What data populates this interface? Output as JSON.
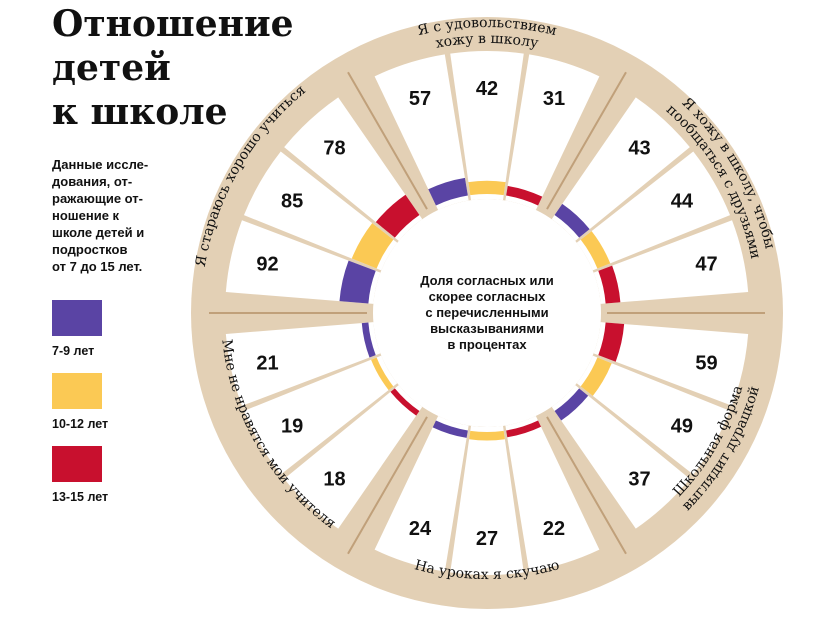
{
  "title_lines": [
    "Отношение",
    "детей",
    "к школе"
  ],
  "subtitle_lines": [
    "Данные иссле-",
    "дования, от-",
    "ражающие от-",
    "ношение к",
    "школе детей и",
    "подростков",
    "от 7 до 15 лет."
  ],
  "colors": {
    "age_7_9": "#5a44a4",
    "age_10_12": "#fbc954",
    "age_13_15": "#c8102e",
    "ring": "#e3d0b5",
    "ring_line": "#c0a07a"
  },
  "chart_data": {
    "type": "radial-bar",
    "center_lines": [
      "Доля согласных или",
      "скорее согласных",
      "с перечисленными",
      "высказываниями",
      "в процентах"
    ],
    "series": [
      {
        "name": "7-9 лет"
      },
      {
        "name": "10-12 лет"
      },
      {
        "name": "13-15 лет"
      }
    ],
    "groups": [
      {
        "label": "Я с удовольствием хожу в школу",
        "label_lines": [
          "Я с удовольствием",
          "хожу в школу"
        ],
        "values": [
          57,
          42,
          31
        ]
      },
      {
        "label": "Я хожу в школу, чтобы пообщаться с друзьями",
        "label_lines": [
          "Я хожу в школу, чтобы",
          "пообщаться с друзьями"
        ],
        "values": [
          43,
          44,
          47
        ]
      },
      {
        "label": "Школьная форма выглядит дурацкой",
        "label_lines": [
          "Школьная форма",
          "выглядит дурацкой"
        ],
        "values": [
          37,
          49,
          59
        ]
      },
      {
        "label": "На уроках я скучаю",
        "label_lines": [
          "На уроках я скучаю"
        ],
        "values": [
          24,
          27,
          22
        ]
      },
      {
        "label": "Мне не нравятся мои учителя",
        "label_lines": [
          "Мне не нравятся мои учителя"
        ],
        "values": [
          21,
          19,
          18
        ]
      },
      {
        "label": "Я стараюсь хорошо учиться",
        "label_lines": [
          "Я стараюсь хорошо учиться"
        ],
        "values": [
          92,
          85,
          78
        ]
      }
    ]
  }
}
